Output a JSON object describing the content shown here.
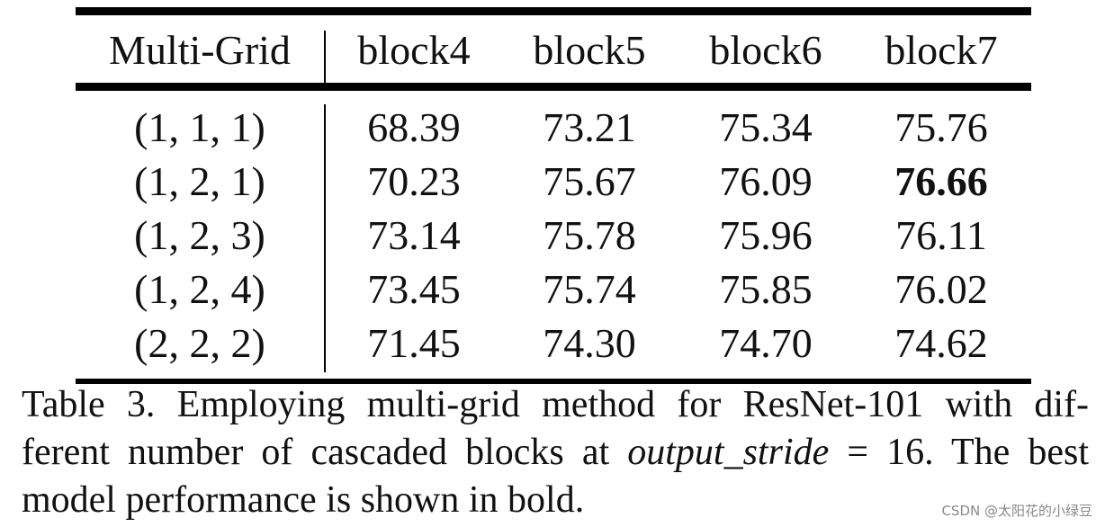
{
  "table": {
    "header": [
      "Multi-Grid",
      "block4",
      "block5",
      "block6",
      "block7"
    ],
    "rows": [
      [
        "(1, 1, 1)",
        "68.39",
        "73.21",
        "75.34",
        "75.76"
      ],
      [
        "(1, 2, 1)",
        "70.23",
        "75.67",
        "76.09",
        "76.66"
      ],
      [
        "(1, 2, 3)",
        "73.14",
        "75.78",
        "75.96",
        "76.11"
      ],
      [
        "(1, 2, 4)",
        "73.45",
        "75.74",
        "75.85",
        "76.02"
      ],
      [
        "(2, 2, 2)",
        "71.45",
        "74.30",
        "74.70",
        "74.62"
      ]
    ],
    "bold_cell": "76.66"
  },
  "caption": {
    "line1": "Table 3. Employing multi-grid method for ResNet-101 with dif-",
    "line2_pre": "ferent number of cascaded blocks at ",
    "line2_italic": "output_stride",
    "line2_post": " = 16. The best",
    "line3": "model performance is shown in bold."
  },
  "watermark": "CSDN @太阳花的小绿豆"
}
